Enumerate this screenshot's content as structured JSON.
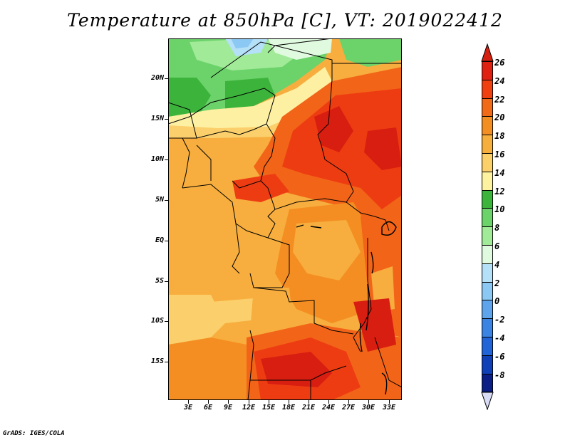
{
  "title": "Temperature at 850hPa [C], VT: 2019022412",
  "credit": "GrADS: IGES/COLA",
  "lat_labels": [
    "20N",
    "15N",
    "10N",
    "5N",
    "EQ",
    "5S",
    "10S",
    "15S"
  ],
  "lon_labels": [
    "3E",
    "6E",
    "9E",
    "12E",
    "15E",
    "18E",
    "21E",
    "24E",
    "27E",
    "30E",
    "33E"
  ],
  "colorbar": {
    "labels": [
      "26",
      "24",
      "22",
      "20",
      "18",
      "16",
      "14",
      "12",
      "10",
      "8",
      "6",
      "4",
      "2",
      "0",
      "-2",
      "-4",
      "-6",
      "-8"
    ],
    "colors": [
      "#e02010",
      "#f04010",
      "#f06a18",
      "#f38e22",
      "#f6ae3c",
      "#fbd06a",
      "#fdf2a0",
      "#3cb43c",
      "#6cd26a",
      "#a0ea98",
      "#e0fae0",
      "#b4e0f8",
      "#8cc8f4",
      "#5ea4ec",
      "#3c84e4",
      "#2064d8",
      "#1040b8",
      "#0a1e86"
    ],
    "top_arrow_color": "#d42010",
    "bottom_arrow_color": "#d8dcf4"
  },
  "map_colors": {
    "t26": "#d81e10",
    "t24": "#ee3c12",
    "t22": "#f26418",
    "t20": "#f48e22",
    "t18": "#f7ae3e",
    "t16": "#fbd06c",
    "t14": "#fdf0a2",
    "t12": "#3cb43c",
    "t10": "#6cd26a",
    "t8": "#a0ea98",
    "t6": "#b4e0f8",
    "t4": "#8cc8f4"
  }
}
